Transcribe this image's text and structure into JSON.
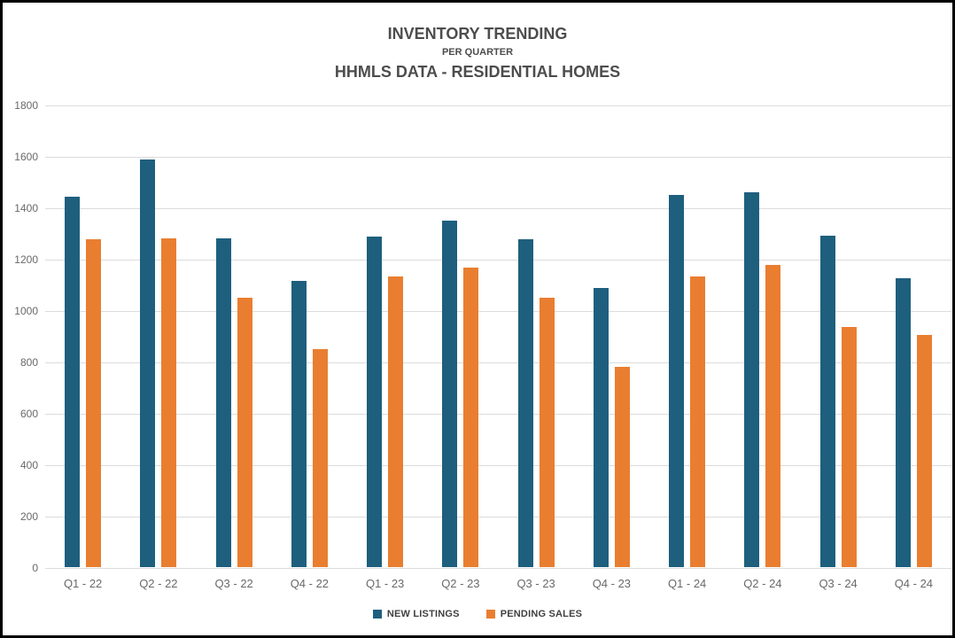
{
  "chart_data": {
    "type": "bar",
    "title": "INVENTORY TRENDING",
    "subtitle": "PER QUARTER",
    "subtitle2": "HHMLS DATA - RESIDENTIAL HOMES",
    "categories": [
      "Q1 - 22",
      "Q2 - 22",
      "Q3 - 22",
      "Q4 - 22",
      "Q1 - 23",
      "Q2 - 23",
      "Q3 - 23",
      "Q4 - 23",
      "Q1 - 24",
      "Q2 - 24",
      "Q3 - 24",
      "Q4 - 24"
    ],
    "series": [
      {
        "name": "NEW LISTINGS",
        "color": "#1E5F7E",
        "values": [
          1440,
          1585,
          1280,
          1115,
          1285,
          1350,
          1275,
          1085,
          1450,
          1460,
          1290,
          1125
        ]
      },
      {
        "name": "PENDING SALES",
        "color": "#E97E30",
        "values": [
          1275,
          1280,
          1050,
          850,
          1130,
          1165,
          1050,
          780,
          1130,
          1175,
          935,
          905
        ]
      }
    ],
    "xlabel": "",
    "ylabel": "",
    "ylim": [
      0,
      1800
    ],
    "ytick_step": 200,
    "yticks": [
      0,
      200,
      400,
      600,
      800,
      1000,
      1200,
      1400,
      1600,
      1800
    ],
    "grid": true,
    "legend_position": "bottom",
    "colors": {
      "background": "#FFFFFF",
      "border": "#000000",
      "gridline": "#DCDCDC",
      "title_text": "#4D4D4D",
      "axis_text": "#696969",
      "legend_text": "#404040"
    }
  }
}
